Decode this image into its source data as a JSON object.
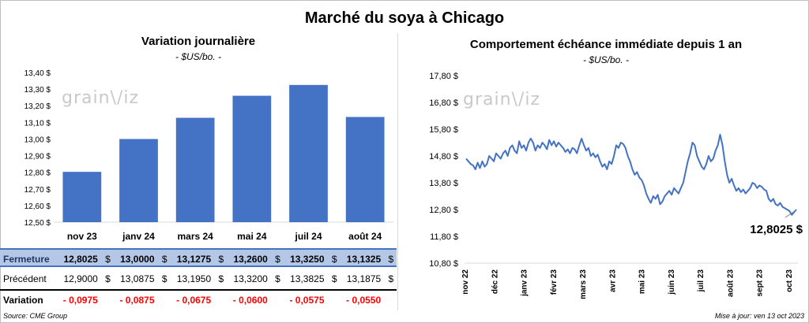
{
  "title": "Marché du soya à Chicago",
  "watermark": "grainwiz",
  "footer": {
    "source": "Source: CME Group",
    "updated": "Mise à jour: ven 13 oct 2023"
  },
  "table": {
    "rows": [
      {
        "label": "Fermeture",
        "values": [
          "12,8025",
          "13,0000",
          "13,1275",
          "13,2600",
          "13,3250",
          "13,1325"
        ],
        "currency": "$"
      },
      {
        "label": "Précédent",
        "values": [
          "12,9000",
          "13,0875",
          "13,1950",
          "13,3200",
          "13,3825",
          "13,1875"
        ],
        "currency": "$"
      },
      {
        "label": "Variation",
        "values": [
          "- 0,0975",
          "- 0,0875",
          "- 0,0675",
          "- 0,0600",
          "- 0,0575",
          "- 0,0550"
        ],
        "currency": ""
      }
    ]
  },
  "colors": {
    "bar": "#4472c4",
    "line": "#4472c4",
    "negative": "#ff0000",
    "header_fill": "#b4c7e7"
  },
  "chart_data": [
    {
      "type": "bar",
      "title": "Variation journalière",
      "subtitle": "- $US/bo. -",
      "categories": [
        "nov 23",
        "janv 24",
        "mars 24",
        "mai 24",
        "juil 24",
        "août 24"
      ],
      "values": [
        12.8025,
        13.0,
        13.1275,
        13.26,
        13.325,
        13.1325
      ],
      "ylim": [
        12.5,
        13.4
      ],
      "yticks": [
        "12,50 $",
        "12,60 $",
        "12,70 $",
        "12,80 $",
        "12,90 $",
        "13,00 $",
        "13,10 $",
        "13,20 $",
        "13,30 $",
        "13,40 $"
      ],
      "grid": false
    },
    {
      "type": "line",
      "title": "Comportement échéance immédiate depuis 1 an",
      "subtitle": "- $US/bo. -",
      "x_labels": [
        "nov 22",
        "déc 22",
        "janv 23",
        "févr 23",
        "mars 23",
        "avr 23",
        "mai 23",
        "juin 23",
        "juil 23",
        "août 23",
        "sept 23",
        "oct 23"
      ],
      "yticks": [
        "10,80 $",
        "11,80 $",
        "12,80 $",
        "13,80 $",
        "14,80 $",
        "15,80 $",
        "16,80 $",
        "17,80 $"
      ],
      "ylim": [
        10.8,
        17.8
      ],
      "last_value_label": "12,8025 $",
      "grid": false,
      "series": [
        {
          "values": [
            14.7,
            14.6,
            14.5,
            14.45,
            14.3,
            14.55,
            14.35,
            14.6,
            14.4,
            14.5,
            14.8,
            14.7,
            14.6,
            14.9,
            14.8,
            14.7,
            14.9,
            15.0,
            14.8,
            15.1,
            15.2,
            15.0,
            14.9,
            15.35,
            15.1,
            15.2,
            15.0,
            15.3,
            15.45,
            15.3,
            15.0,
            15.2,
            15.1,
            15.3,
            15.2,
            15.05,
            15.4,
            15.2,
            15.35,
            15.15,
            15.3,
            15.2,
            15.1,
            14.95,
            15.05,
            14.9,
            15.1,
            15.05,
            14.9,
            15.2,
            15.45,
            15.2,
            15.0,
            15.1,
            14.8,
            14.9,
            14.75,
            14.85,
            14.6,
            14.4,
            14.5,
            14.3,
            14.6,
            14.5,
            14.8,
            15.2,
            15.1,
            15.3,
            15.25,
            15.1,
            14.8,
            14.6,
            14.3,
            14.1,
            14.2,
            14.0,
            13.9,
            13.7,
            13.4,
            13.2,
            13.05,
            13.3,
            13.2,
            13.35,
            13.0,
            13.1,
            13.3,
            13.4,
            13.5,
            13.35,
            13.6,
            13.5,
            13.4,
            13.6,
            13.8,
            14.2,
            14.6,
            14.9,
            15.3,
            15.2,
            14.8,
            14.6,
            14.4,
            14.3,
            14.5,
            14.8,
            14.6,
            14.7,
            15.0,
            15.2,
            15.6,
            15.2,
            14.6,
            14.1,
            13.8,
            13.95,
            13.7,
            13.5,
            13.6,
            13.45,
            13.55,
            13.4,
            13.5,
            13.6,
            13.8,
            13.75,
            13.6,
            13.7,
            13.65,
            13.55,
            13.5,
            13.2,
            13.1,
            13.2,
            13.0,
            12.95,
            13.05,
            12.9,
            12.85,
            12.8,
            12.75,
            12.6,
            12.7,
            12.8
          ]
        }
      ]
    }
  ]
}
